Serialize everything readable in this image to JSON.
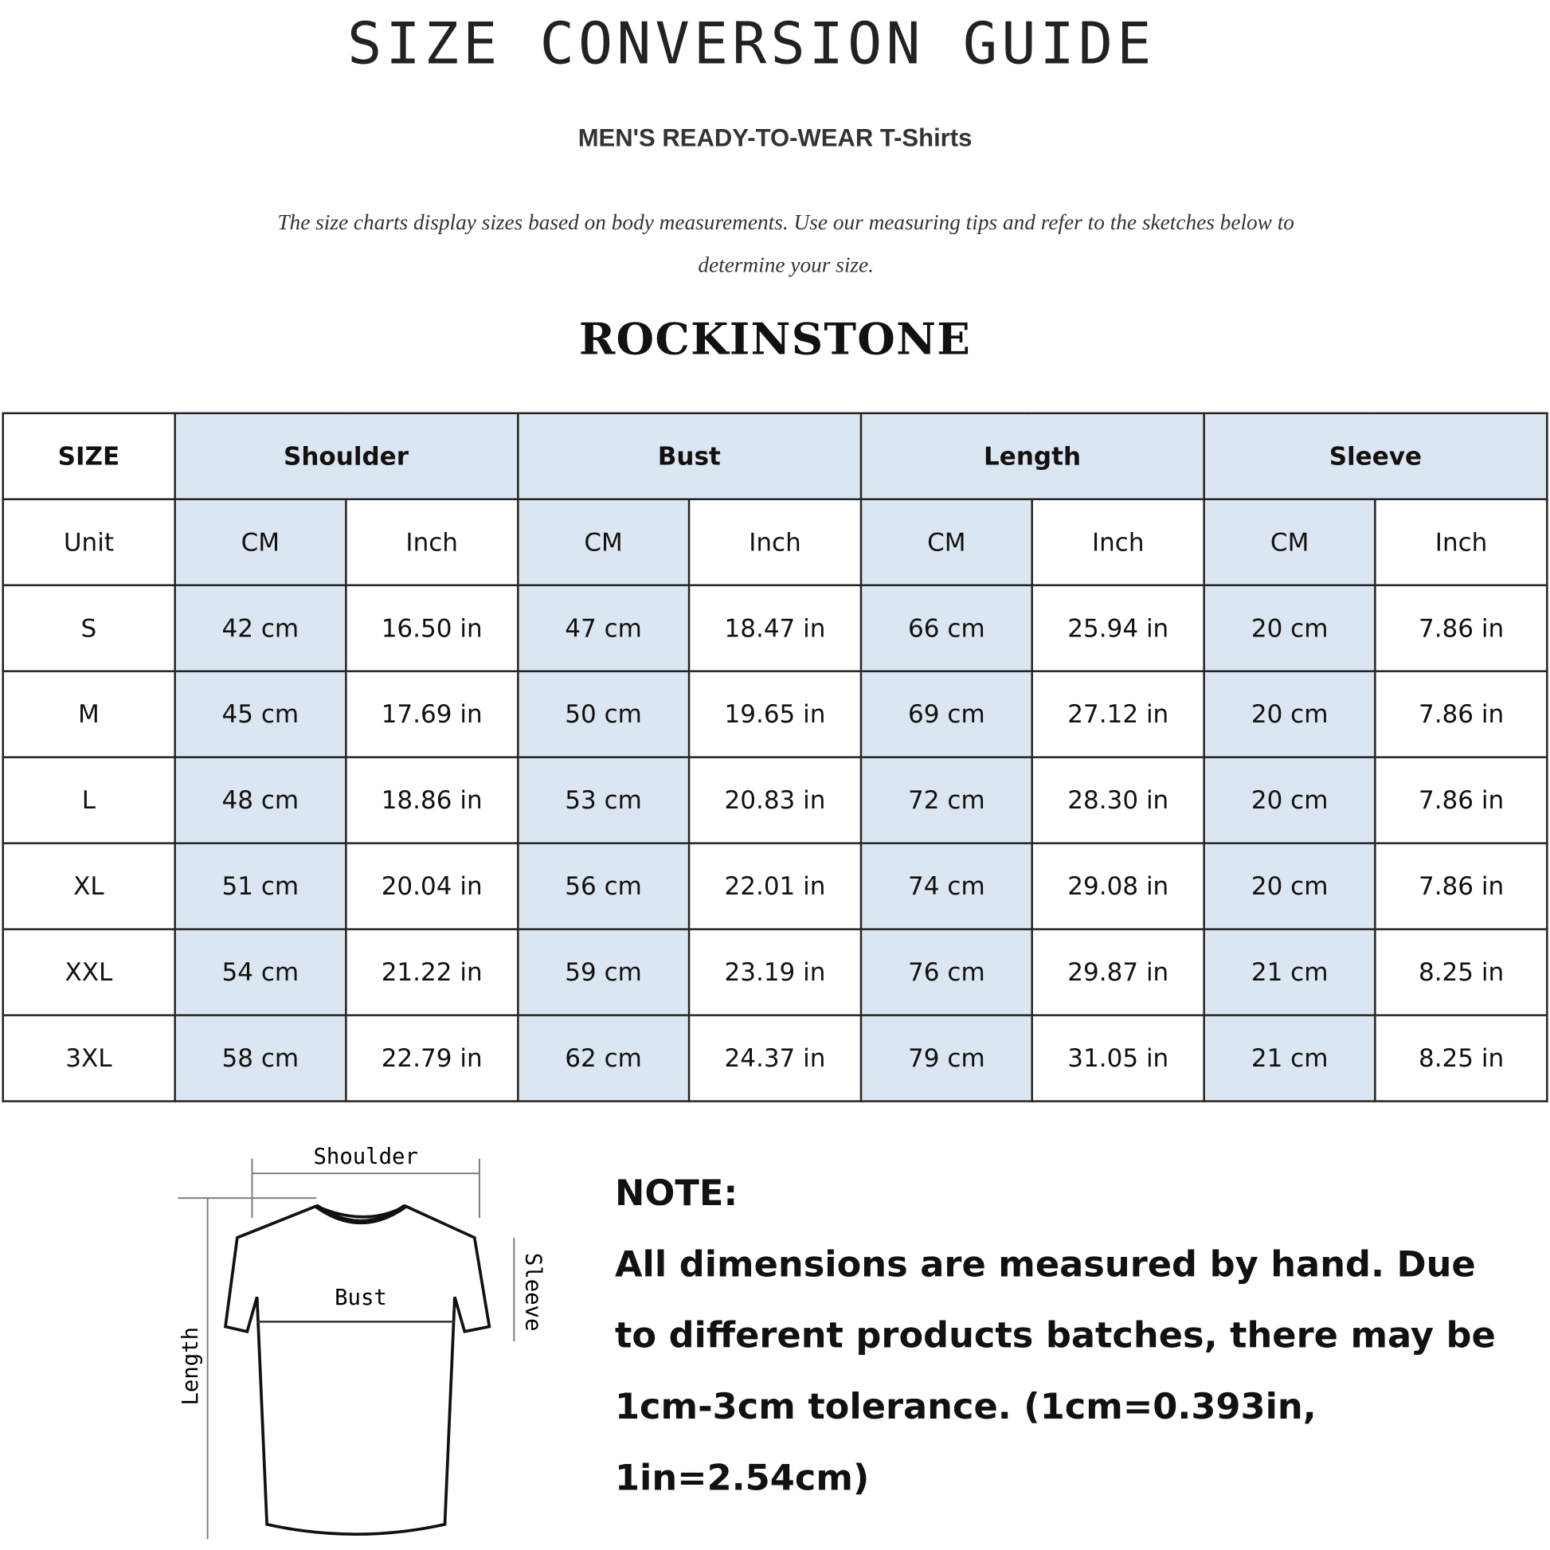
{
  "title": "SIZE CONVERSION GUIDE",
  "subtitle": "MEN'S READY-TO-WEAR T-Shirts",
  "description": "The size charts display sizes based on body measurements. Use our measuring tips and refer to the sketches below to determine your size.",
  "brand": "ROCKINSTONE",
  "watermark": "ROCKINSTONE",
  "table": {
    "size_header": "SIZE",
    "groups": [
      "Shoulder",
      "Bust",
      "Length",
      "Sleeve"
    ],
    "unit_label": "Unit",
    "units": [
      "CM",
      "Inch",
      "CM",
      "Inch",
      "CM",
      "Inch",
      "CM",
      "Inch"
    ],
    "rows": [
      [
        "S",
        "42 cm",
        "16.50 in",
        "47 cm",
        "18.47  in",
        "66 cm",
        "25.94  in",
        "20 cm",
        "7.86  in"
      ],
      [
        "M",
        "45 cm",
        "17.69  in",
        "50 cm",
        "19.65  in",
        "69 cm",
        "27.12  in",
        "20 cm",
        "7.86  in"
      ],
      [
        "L",
        "48 cm",
        "18.86  in",
        "53 cm",
        "20.83  in",
        "72 cm",
        "28.30  in",
        "20 cm",
        "7.86  in"
      ],
      [
        "XL",
        "51 cm",
        "20.04  in",
        "56 cm",
        "22.01  in",
        "74 cm",
        "29.08  in",
        "20 cm",
        "7.86  in"
      ],
      [
        "XXL",
        "54 cm",
        "21.22  in",
        "59 cm",
        "23.19  in",
        "76 cm",
        "29.87  in",
        "21 cm",
        "8.25  in"
      ],
      [
        "3XL",
        "58 cm",
        "22.79  in",
        "62 cm",
        "24.37  in",
        "79 cm",
        "31.05  in",
        "21 cm",
        "8.25  in"
      ]
    ]
  },
  "sketch": {
    "shoulder": "Shoulder",
    "bust": "Bust",
    "length": "Length",
    "sleeve": "Sleeve"
  },
  "note": {
    "heading": "NOTE:",
    "text": "All dimensions are measured by hand. Due to different products batches, there may be 1cm-3cm tolerance. (1cm=0.393in, 1in=2.54cm)"
  },
  "colors": {
    "header_fill": "#dce6f0",
    "border": "#222222"
  }
}
